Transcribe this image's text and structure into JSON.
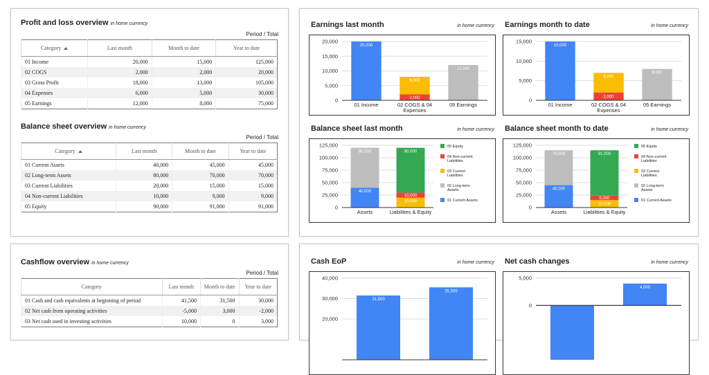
{
  "profit_loss": {
    "title": "Profit and loss overview",
    "subtitle": "in home currency",
    "period_label": "Period / Total",
    "header": [
      "Category",
      "Last month",
      "Month to date",
      "Year to date"
    ],
    "rows": [
      [
        "01 Income",
        "20,000",
        "15,000",
        "125,000"
      ],
      [
        "02 COGS",
        "2,000",
        "2,000",
        "20,000"
      ],
      [
        "03 Gross Profit",
        "18,000",
        "13,000",
        "105,000"
      ],
      [
        "04 Expenses",
        "6,000",
        "5,000",
        "30,000"
      ],
      [
        "05 Earnings",
        "12,000",
        "8,000",
        "75,000"
      ]
    ]
  },
  "balance_sheet": {
    "title": "Balance sheet overview",
    "subtitle": "in home currency",
    "period_label": "Period / Total",
    "header": [
      "Category",
      "Last month",
      "Month to date",
      "Year to date"
    ],
    "rows": [
      [
        "01 Current Assets",
        "40,000",
        "45,000",
        "45,000"
      ],
      [
        "02 Long-term Assets",
        "80,000",
        "70,000",
        "70,000"
      ],
      [
        "03 Current Liabilities",
        "20,000",
        "15,000",
        "15,000"
      ],
      [
        "04 Non-current Liabilities",
        "10,000",
        "9,000",
        "9,000"
      ],
      [
        "05 Equity",
        "90,000",
        "91,000",
        "91,000"
      ]
    ]
  },
  "cashflow": {
    "title": "Cashflow overview",
    "subtitle": "in home currency",
    "period_label": "Period / Total",
    "header": [
      "Category",
      "Last month",
      "Month to date",
      "Year to date"
    ],
    "rows": [
      [
        "01 Cash and cash equivalents at beginning of period",
        "41,500",
        "31,500",
        "30,000"
      ],
      [
        "02 Net cash from operating activities",
        "-5,000",
        "3,000",
        "-2,000"
      ],
      [
        "03 Net cash used in investing activities",
        "10,000",
        "0",
        "3,000"
      ]
    ]
  },
  "chart_data": [
    {
      "type": "bar",
      "title": "Earnings last month",
      "subtitle": "in home currency",
      "grid": true,
      "categories": [
        "01 Income",
        "02 COGS & 04 Expenses",
        "05 Earnings"
      ],
      "series": [
        {
          "color": "#4285f4",
          "values": [
            20000,
            null,
            null
          ],
          "value_labels": [
            "20,000",
            null,
            null
          ]
        },
        {
          "color": "#ea4335",
          "values": [
            null,
            2000,
            null
          ],
          "value_labels": [
            null,
            "2,000",
            null
          ]
        },
        {
          "color": "#fbbc04",
          "values": [
            null,
            6000,
            null
          ],
          "value_labels": [
            null,
            "6,000",
            null
          ]
        },
        {
          "color": "#bdbdbd",
          "values": [
            null,
            null,
            12000
          ],
          "value_labels": [
            null,
            null,
            "12,000"
          ]
        }
      ],
      "ylim": [
        0,
        20000
      ],
      "yticks": [
        0,
        {
          "value": 5000,
          "label": "5,000"
        },
        {
          "value": 10000,
          "label": "10,000"
        },
        {
          "value": 15000,
          "label": "15,000"
        },
        {
          "value": 20000,
          "label": "20,000"
        }
      ]
    },
    {
      "type": "bar",
      "title": "Earnings month to date",
      "subtitle": "in home currency",
      "grid": true,
      "categories": [
        "01 Income",
        "02 COGS & 04 Expenses",
        "05 Earnings"
      ],
      "series": [
        {
          "color": "#4285f4",
          "values": [
            15000,
            null,
            null
          ],
          "value_labels": [
            "15,000",
            null,
            null
          ]
        },
        {
          "color": "#ea4335",
          "values": [
            null,
            2000,
            null
          ],
          "value_labels": [
            null,
            "2,000",
            null
          ]
        },
        {
          "color": "#fbbc04",
          "values": [
            null,
            5000,
            null
          ],
          "value_labels": [
            null,
            "5,000",
            null
          ]
        },
        {
          "color": "#bdbdbd",
          "values": [
            null,
            null,
            8000
          ],
          "value_labels": [
            null,
            null,
            "8,000"
          ]
        }
      ],
      "ylim": [
        0,
        15000
      ],
      "yticks": [
        0,
        {
          "value": 5000,
          "label": "5,000"
        },
        {
          "value": 10000,
          "label": "10,000"
        },
        {
          "value": 15000,
          "label": "15,000"
        }
      ]
    },
    {
      "type": "bar",
      "title": "Balance sheet last month",
      "subtitle": "in home currency",
      "grid": true,
      "legend": "right",
      "categories": [
        "Assets",
        "Liabilities & Equity"
      ],
      "series": [
        {
          "name": "01 Current Assets",
          "color": "#4285f4",
          "values": [
            40000,
            null
          ],
          "value_labels": [
            "40,000",
            null
          ]
        },
        {
          "name": "02 Long-term Assets",
          "color": "#bdbdbd",
          "values": [
            80000,
            null
          ],
          "value_labels": [
            "80,000",
            null
          ]
        },
        {
          "name": "03 Current Liabilities",
          "color": "#fbbc04",
          "values": [
            null,
            20000
          ],
          "value_labels": [
            null,
            "20,000"
          ]
        },
        {
          "name": "04 Non-current Liabilities",
          "color": "#ea4335",
          "values": [
            null,
            10000
          ],
          "value_labels": [
            null,
            "10,000"
          ]
        },
        {
          "name": "05 Equity",
          "color": "#34a853",
          "values": [
            null,
            90000
          ],
          "value_labels": [
            null,
            "90,000"
          ]
        }
      ],
      "ylim": [
        0,
        125000
      ],
      "yticks": [
        0,
        {
          "value": 25000,
          "label": "25,000"
        },
        {
          "value": 50000,
          "label": "50,000"
        },
        {
          "value": 75000,
          "label": "75,000"
        },
        {
          "value": 100000,
          "label": "100,000"
        },
        {
          "value": 125000,
          "label": "125,000"
        }
      ]
    },
    {
      "type": "bar",
      "title": "Balance sheet month to date",
      "subtitle": "in home currency",
      "grid": true,
      "legend": "right",
      "categories": [
        "Assets",
        "Liabilities & Equity"
      ],
      "series": [
        {
          "name": "01 Current Assets",
          "color": "#4285f4",
          "values": [
            45000,
            null
          ],
          "value_labels": [
            "45,000",
            null
          ]
        },
        {
          "name": "02 Long-term Assets",
          "color": "#bdbdbd",
          "values": [
            70000,
            null
          ],
          "value_labels": [
            "70,000",
            null
          ]
        },
        {
          "name": "03 Current Liabilities",
          "color": "#fbbc04",
          "values": [
            null,
            15000
          ],
          "value_labels": [
            null,
            "15,000"
          ]
        },
        {
          "name": "04 Non-current Liabilities",
          "color": "#ea4335",
          "values": [
            null,
            9000
          ],
          "value_labels": [
            null,
            "9,000"
          ]
        },
        {
          "name": "05 Equity",
          "color": "#34a853",
          "values": [
            null,
            91000
          ],
          "value_labels": [
            null,
            "91,000"
          ]
        }
      ],
      "ylim": [
        0,
        125000
      ],
      "yticks": [
        0,
        {
          "value": 25000,
          "label": "25,000"
        },
        {
          "value": 50000,
          "label": "50,000"
        },
        {
          "value": 75000,
          "label": "75,000"
        },
        {
          "value": 100000,
          "label": "100,000"
        },
        {
          "value": 125000,
          "label": "125,000"
        }
      ]
    },
    {
      "type": "bar",
      "title": "Cash EoP",
      "subtitle": "in home currency",
      "grid": true,
      "categories": [
        null,
        null
      ],
      "series": [
        {
          "color": "#4285f4",
          "values": [
            31500,
            35500
          ],
          "value_labels": [
            "31,500",
            "35,500"
          ]
        }
      ],
      "ylim": [
        0,
        40000
      ],
      "yticks": [
        {
          "value": 20000,
          "label": "20,000"
        },
        {
          "value": 30000,
          "label": "30,000"
        },
        {
          "value": 40000,
          "label": "40,000"
        }
      ]
    },
    {
      "type": "bar",
      "title": "Net cash changes",
      "subtitle": "in home currency",
      "grid": true,
      "categories": [
        null,
        null
      ],
      "series": [
        {
          "color": "#4285f4",
          "values": [
            -10000,
            4000
          ],
          "value_labels": [
            null,
            "4,000"
          ]
        }
      ],
      "ylim": [
        -10000,
        5000
      ],
      "yticks": [
        0,
        {
          "value": 5000,
          "label": "5,000"
        }
      ]
    }
  ]
}
